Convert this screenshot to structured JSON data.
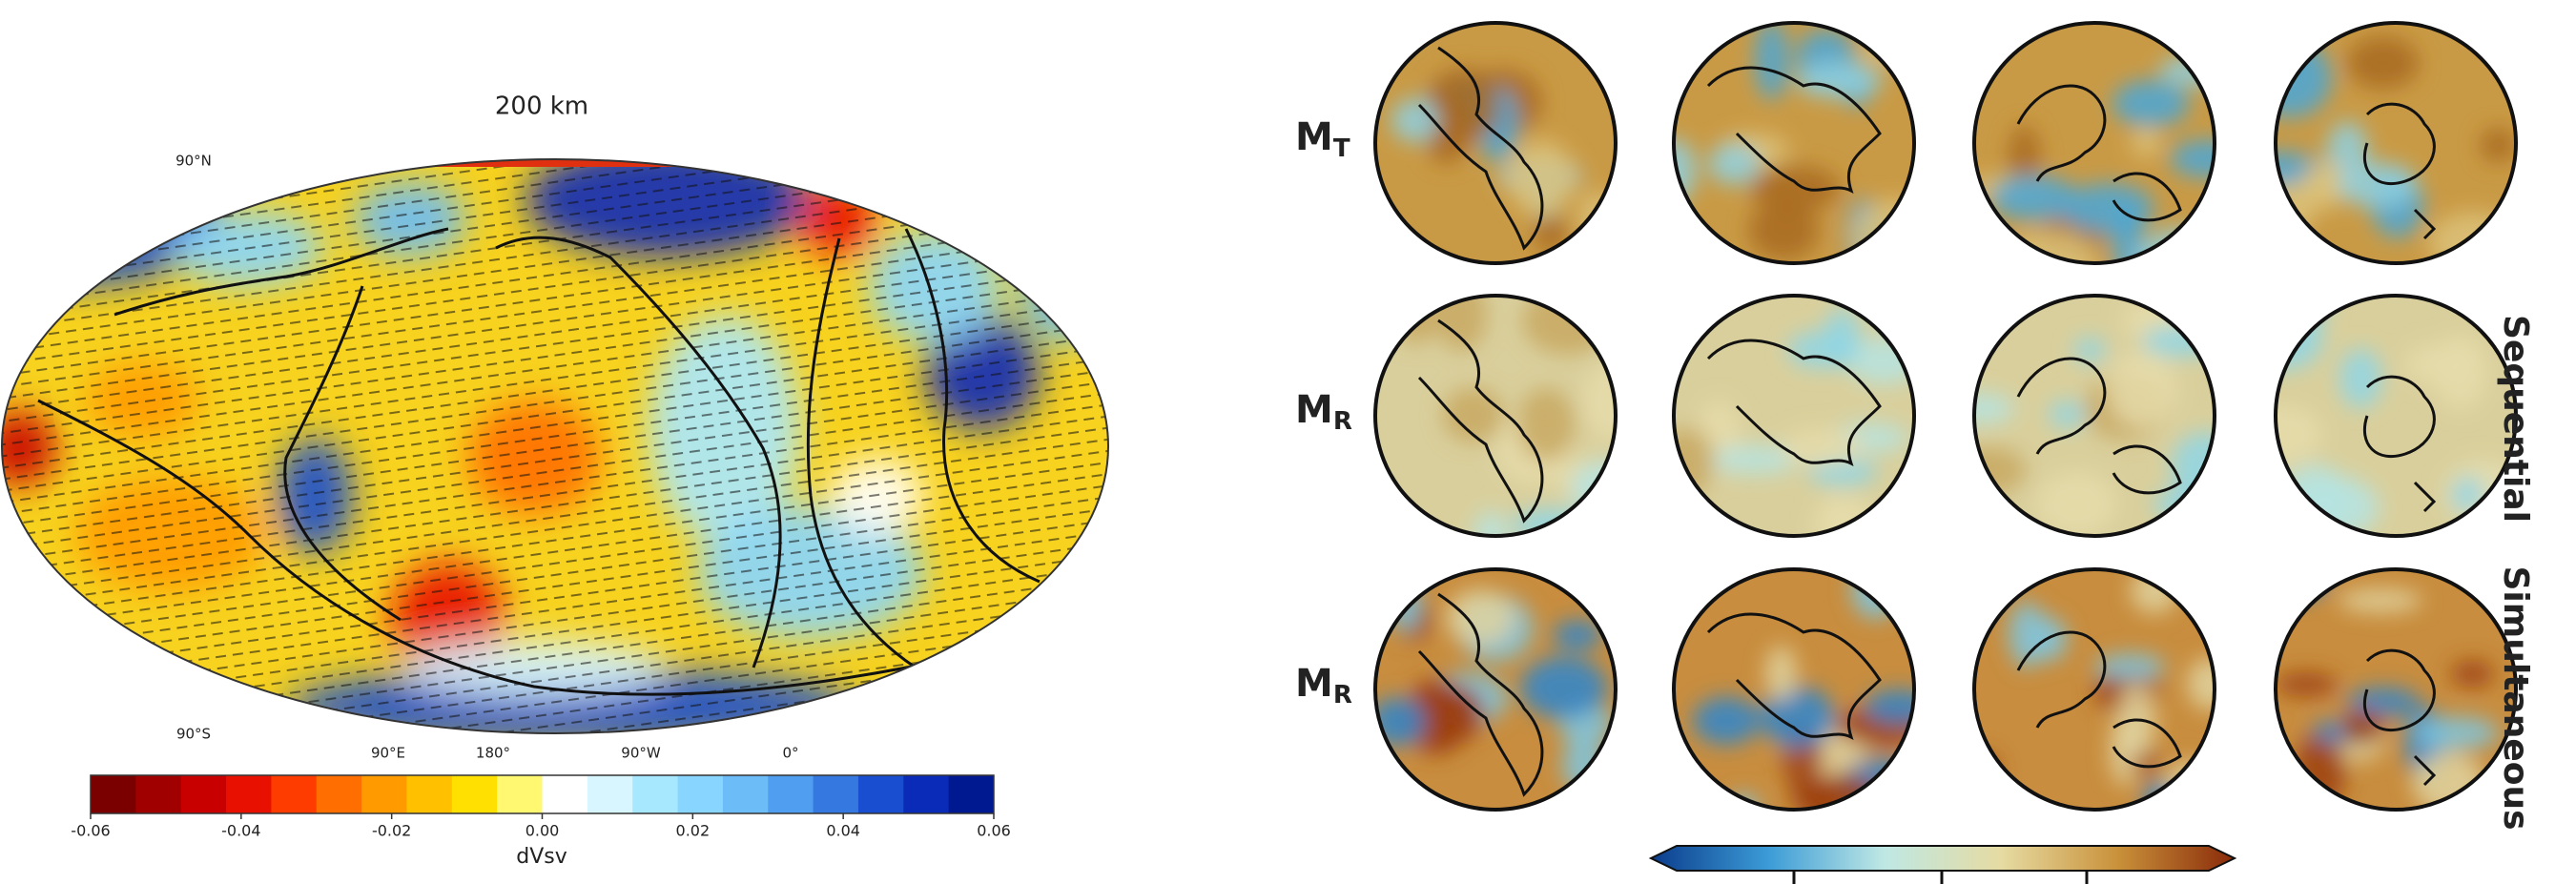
{
  "map": {
    "title": "200 km",
    "lat_labels": [
      "90°N",
      "90°S"
    ],
    "lon_labels": [
      "90°E",
      "180°",
      "90°W",
      "0°"
    ],
    "colorbar": {
      "label": "dVsv",
      "lim": [
        -0.06,
        0.06
      ],
      "ticks": [
        -0.06,
        -0.04,
        -0.02,
        {
          "value": 0,
          "label": "0.00"
        },
        0.02,
        0.04,
        0.06
      ],
      "colors": [
        "#7a0000",
        "#a00000",
        "#c80000",
        "#e81000",
        "#ff3c00",
        "#ff6e00",
        "#ff9a00",
        "#ffc000",
        "#ffe000",
        "#fff870",
        "#ffffff",
        "#d8f6ff",
        "#a8e8ff",
        "#88d6ff",
        "#6cbcf8",
        "#509ef0",
        "#3478e0",
        "#1a4ed0",
        "#0a2ab8",
        "#001890"
      ]
    }
  },
  "globes": {
    "rows": [
      {
        "label": "M",
        "sub": "T"
      },
      {
        "label": "M",
        "sub": "R"
      },
      {
        "label": "M",
        "sub": "R"
      }
    ],
    "groups": [
      "Sequential",
      "Simultaneous"
    ],
    "colorbar_colors": [
      "#0b3c8c",
      "#3b9bd6",
      "#bfe8e4",
      "#e6dba2",
      "#c9913a",
      "#8a2a0a"
    ]
  }
}
